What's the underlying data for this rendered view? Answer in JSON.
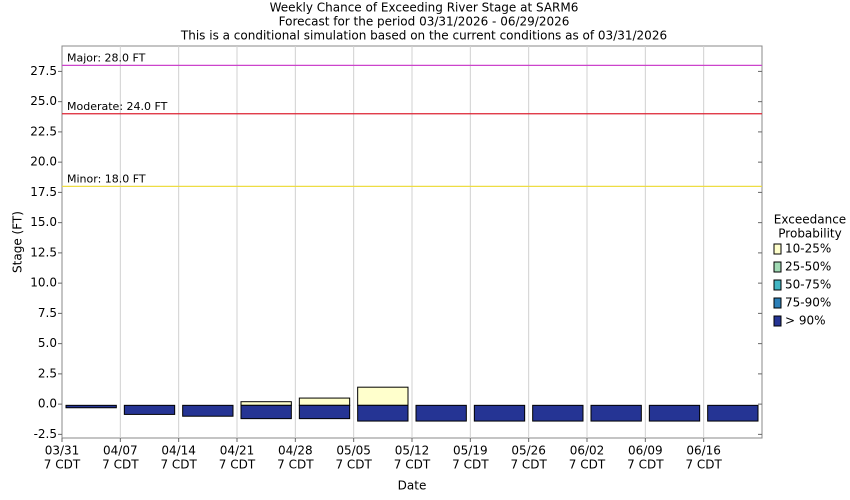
{
  "chart_data": {
    "type": "floating-bar",
    "title": [
      "Weekly Chance of Exceeding River Stage at SARM6",
      "Forecast for the period 03/31/2026 - 06/29/2026",
      "This is a conditional simulation based on the current conditions as of 03/31/2026"
    ],
    "xlabel": "Date",
    "ylabel": "Stage (FT)",
    "categories": [
      [
        "03/31",
        "7 CDT"
      ],
      [
        "04/07",
        "7 CDT"
      ],
      [
        "04/14",
        "7 CDT"
      ],
      [
        "04/21",
        "7 CDT"
      ],
      [
        "04/28",
        "7 CDT"
      ],
      [
        "05/05",
        "7 CDT"
      ],
      [
        "05/12",
        "7 CDT"
      ],
      [
        "05/19",
        "7 CDT"
      ],
      [
        "05/26",
        "7 CDT"
      ],
      [
        "06/02",
        "7 CDT"
      ],
      [
        "06/09",
        "7 CDT"
      ],
      [
        "06/16",
        "7 CDT"
      ]
    ],
    "ylim": [
      -2.8,
      29.6
    ],
    "yticks": [
      -2.5,
      {
        "value": 0,
        "label": "0.0"
      },
      2.5,
      {
        "value": 5,
        "label": "5.0"
      },
      7.5,
      {
        "value": 10,
        "label": "10.0"
      },
      12.5,
      {
        "value": 15,
        "label": "15.0"
      },
      17.5,
      {
        "value": 20,
        "label": "20.0"
      },
      22.5,
      {
        "value": 25,
        "label": "25.0"
      },
      27.5
    ],
    "grid": "x",
    "thresholds": [
      {
        "label": "Major: 28.0 FT",
        "value": 28,
        "color": "#cc44cc"
      },
      {
        "label": "Moderate: 24.0 FT",
        "value": 24,
        "color": "#dd2233"
      },
      {
        "label": "Minor: 18.0 FT",
        "value": 18,
        "color": "#eedd44"
      }
    ],
    "legend_title": [
      "Exceedance",
      "Probability"
    ],
    "series": [
      {
        "name": "10-25%",
        "color": "#ffffcc",
        "low": [
          null,
          null,
          null,
          -0.1,
          -0.1,
          -0.1,
          null,
          null,
          null,
          null,
          null,
          null
        ],
        "high": [
          null,
          null,
          null,
          0.2,
          0.5,
          1.4,
          null,
          null,
          null,
          null,
          null,
          null
        ]
      },
      {
        "name": "25-50%",
        "color": "#a1dab4",
        "low": [
          null,
          null,
          null,
          null,
          null,
          null,
          null,
          null,
          null,
          null,
          null,
          null
        ],
        "high": [
          null,
          null,
          null,
          null,
          null,
          null,
          null,
          null,
          null,
          null,
          null,
          null
        ]
      },
      {
        "name": "50-75%",
        "color": "#41b6c4",
        "low": [
          null,
          null,
          null,
          null,
          null,
          null,
          null,
          null,
          null,
          null,
          null,
          null
        ],
        "high": [
          null,
          null,
          null,
          null,
          null,
          null,
          null,
          null,
          null,
          null,
          null,
          null
        ]
      },
      {
        "name": "75-90%",
        "color": "#2c7fb8",
        "low": [
          null,
          null,
          null,
          null,
          null,
          null,
          null,
          null,
          null,
          null,
          null,
          null
        ],
        "high": [
          null,
          null,
          null,
          null,
          null,
          null,
          null,
          null,
          null,
          null,
          null,
          null
        ]
      },
      {
        "name": "> 90%",
        "color": "#253494",
        "low": [
          -0.3,
          -0.85,
          -1.0,
          -1.2,
          -1.2,
          -1.4,
          -1.4,
          -1.4,
          -1.4,
          -1.4,
          -1.4,
          -1.4
        ],
        "high": [
          -0.1,
          -0.1,
          -0.1,
          -0.1,
          -0.1,
          -0.1,
          -0.1,
          -0.1,
          -0.1,
          -0.1,
          -0.1,
          -0.1
        ]
      }
    ]
  }
}
